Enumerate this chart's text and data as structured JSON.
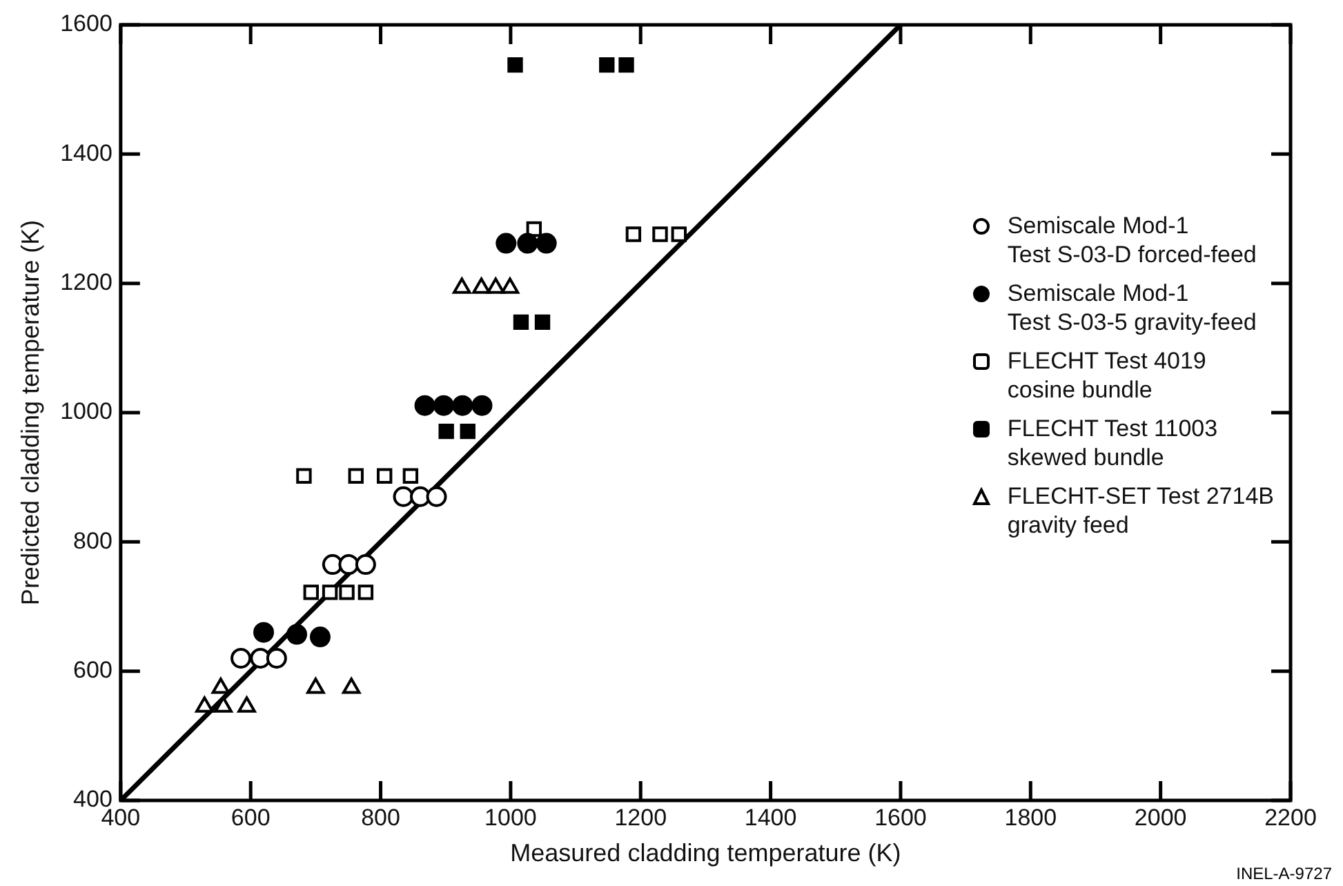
{
  "chart_data": {
    "type": "scatter",
    "xlabel": "Measured cladding temperature (K)",
    "ylabel": "Predicted cladding temperature (K)",
    "xlim": [
      400,
      2200
    ],
    "xticks": [
      400,
      600,
      800,
      1000,
      1200,
      1400,
      1600,
      1800,
      2000,
      2200
    ],
    "ylim": [
      400,
      1600
    ],
    "yticks": [
      400,
      600,
      800,
      1000,
      1200,
      1400,
      1600
    ],
    "grid": false,
    "legend": "right",
    "annotations": [
      "INEL-A-9727"
    ],
    "series": [
      {
        "name": "Semiscale Mod-1\nTest S-03-D forced-feed",
        "color": "#000000",
        "marker": "circle-open",
        "x": [
          585,
          615,
          640,
          726,
          751,
          777,
          835,
          861,
          886
        ],
        "values": [
          620,
          620,
          620,
          765,
          765,
          765,
          870,
          870,
          870
        ]
      },
      {
        "name": "Semiscale Mod-1\nTest S-03-5 gravity-feed",
        "color": "#000000",
        "marker": "circle",
        "x": [
          620,
          671,
          707,
          868,
          897,
          926,
          956,
          993,
          1026,
          1055
        ],
        "values": [
          660,
          657,
          653,
          1011,
          1011,
          1011,
          1011,
          1262,
          1262,
          1262
        ]
      },
      {
        "name": "FLECHT Test 4019\ncosine bundle",
        "color": "#000000",
        "marker": "square-open",
        "x": [
          693,
          722,
          748,
          777,
          682,
          762,
          806,
          846,
          1036,
          1189,
          1230,
          1259
        ],
        "values": [
          722,
          722,
          722,
          722,
          902,
          902,
          902,
          902,
          1284,
          1276,
          1276,
          1276
        ]
      },
      {
        "name": "FLECHT Test 11003\nskewed bundle",
        "color": "#000000",
        "marker": "square",
        "x": [
          901,
          934,
          1016,
          1049,
          1007,
          1148,
          1178
        ],
        "values": [
          971,
          971,
          1140,
          1140,
          1538,
          1538,
          1538
        ]
      },
      {
        "name": "FLECHT-SET Test 2714B\ngravity feed",
        "color": "#000000",
        "marker": "triangle-open",
        "x": [
          554,
          529,
          558,
          594,
          700,
          755,
          925,
          955,
          977,
          999
        ],
        "values": [
          574,
          545,
          545,
          545,
          574,
          574,
          1193,
          1193,
          1193,
          1193
        ]
      },
      {
        "type": "line",
        "color": "#000000",
        "marker": "none",
        "line_style": "solid",
        "x": [
          400,
          1600
        ],
        "values": [
          400,
          1600
        ]
      }
    ]
  }
}
